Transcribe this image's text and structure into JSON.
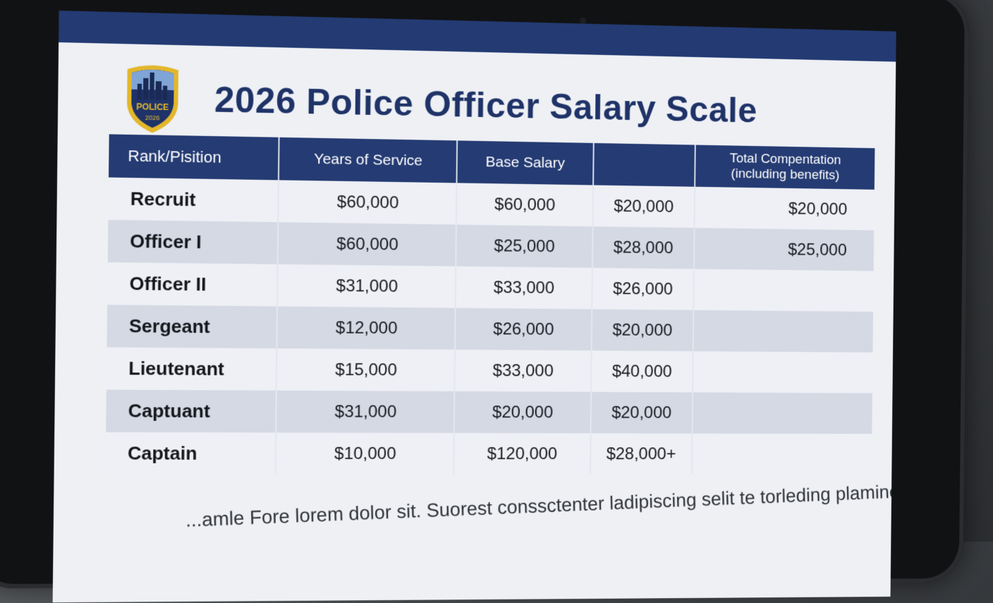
{
  "page": {
    "title": "2026 Police Officer Salary Scale",
    "badge_text": "POLICE",
    "badge_year": "2026",
    "footer": "...amle Fore lorem dolor sit. Suorest conssctenter ladipiscing selit te torleding plamine"
  },
  "colors": {
    "header_bar": "#233a73",
    "title": "#1f3368",
    "table_header": "#253b73",
    "row_light": "#eef0f5",
    "row_dark": "#d4d9e4",
    "badge_gold": "#e3b72b"
  },
  "table": {
    "headers": [
      "Rank/Pisition",
      "Years of Service",
      "Base Salary",
      "",
      "Total Compentation\n(including benefits)"
    ],
    "rows": [
      [
        "Recruit",
        "$60,000",
        "$60,000",
        "$20,000",
        "$20,000"
      ],
      [
        "Officer I",
        "$60,000",
        "$25,000",
        "$28,000",
        "$25,000"
      ],
      [
        "Officer II",
        "$31,000",
        "$33,000",
        "$26,000",
        ""
      ],
      [
        "Sergeant",
        "$12,000",
        "$26,000",
        "$20,000",
        ""
      ],
      [
        "Lieutenant",
        "$15,000",
        "$33,000",
        "$40,000",
        ""
      ],
      [
        "Captuant",
        "$31,000",
        "$20,000",
        "$20,000",
        ""
      ],
      [
        "Captain",
        "$10,000",
        "$120,000",
        "$28,000+",
        ""
      ]
    ]
  }
}
